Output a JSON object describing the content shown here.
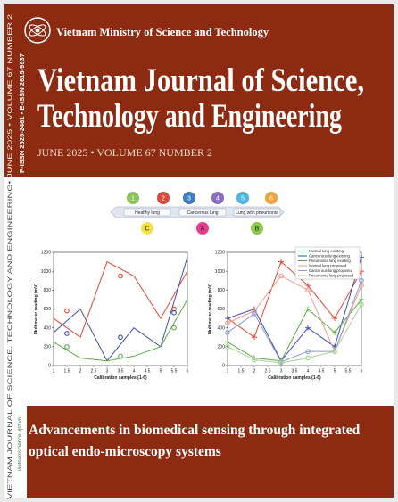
{
  "header": {
    "publisher": "Vietnam Ministry of Science and Technology",
    "title_lines": [
      "Vietnam Journal of Science,",
      "Technology and Engineering"
    ],
    "issue": "JUNE 2025 • VOLUME 67 NUMBER 2",
    "issn": "P-ISSN 2525-2461 • E-ISSN 2615-9937"
  },
  "spine": "VIETNAM JOURNAL OF SCIENCE, TECHNOLOGY AND ENGINEERING• JUNE 2025 • VOLUME 67 NUMBER 2",
  "website": "vietnamscience.vjst.vn",
  "figure": {
    "diagram": {
      "steps": [
        {
          "label": "1",
          "color": "#8dc35a"
        },
        {
          "label": "2",
          "color": "#d9493f"
        },
        {
          "label": "3",
          "color": "#3f7cc4"
        },
        {
          "label": "4",
          "color": "#8b6ec2"
        },
        {
          "label": "5",
          "color": "#4db5e3"
        },
        {
          "label": "6",
          "color": "#f0a23c"
        }
      ],
      "stages": [
        "Healthy lung",
        "Cancerous lung",
        "Lung with pneumonia"
      ],
      "classes": [
        {
          "label": "C",
          "color": "#f4e04a"
        },
        {
          "label": "A",
          "color": "#e0418f"
        },
        {
          "label": "B",
          "color": "#8cc84b"
        }
      ]
    },
    "charts": [
      {
        "type": "line",
        "xlabel": "Calibration samples (1-6)",
        "ylabel": "Multimeter reading (mV)",
        "xlim": [
          1,
          6
        ],
        "ylim": [
          0,
          1200
        ],
        "xticks": [
          1,
          1.5,
          2,
          2.5,
          3,
          3.5,
          4,
          4.5,
          5,
          5.5,
          6
        ],
        "yticks": [
          0,
          200,
          400,
          600,
          800,
          1000,
          1200
        ],
        "series": [
          {
            "color": "#e8402f",
            "line": true,
            "marker": "none",
            "x": [
              1,
              2,
              3,
              4,
              5,
              6
            ],
            "values": [
              500,
              300,
              1100,
              950,
              500,
              1000
            ]
          },
          {
            "color": "#3c4fa8",
            "line": true,
            "marker": "none",
            "x": [
              1,
              2,
              3,
              4,
              5,
              6
            ],
            "values": [
              350,
              600,
              50,
              400,
              200,
              1150
            ]
          },
          {
            "color": "#5aaa46",
            "line": true,
            "marker": "none",
            "x": [
              1,
              2,
              3,
              4,
              5,
              6
            ],
            "values": [
              250,
              80,
              50,
              100,
              200,
              700
            ]
          },
          {
            "color": "#e8402f",
            "line": false,
            "marker": "o",
            "x": [
              1.5,
              3.5,
              5.5
            ],
            "values": [
              580,
              950,
              600
            ]
          },
          {
            "color": "#3c4fa8",
            "line": false,
            "marker": "o",
            "x": [
              1.5,
              3.5,
              5.5
            ],
            "values": [
              340,
              300,
              560
            ]
          },
          {
            "color": "#5aaa46",
            "line": false,
            "marker": "o",
            "x": [
              1.5,
              3.5,
              5.5
            ],
            "values": [
              200,
              100,
              400
            ]
          }
        ]
      },
      {
        "type": "line",
        "xlabel": "Calibration samples (1-6)",
        "ylabel": "Multimeter reading (mV)",
        "xlim": [
          1,
          6
        ],
        "ylim": [
          0,
          1200
        ],
        "xticks": [
          1,
          1.5,
          2,
          2.5,
          3,
          3.5,
          4,
          4.5,
          5,
          5.5,
          6
        ],
        "yticks": [
          0,
          200,
          400,
          600,
          800,
          1000,
          1200
        ],
        "legend": "upper right",
        "series": [
          {
            "name": "Normal lung existing",
            "color": "#e8402f",
            "line": true,
            "marker": "+",
            "x": [
              1,
              2,
              3,
              4,
              5,
              6
            ],
            "values": [
              500,
              300,
              1100,
              850,
              500,
              1000
            ]
          },
          {
            "name": "Cancerous lung existing",
            "color": "#3c4fa8",
            "line": true,
            "marker": "+",
            "x": [
              1,
              2,
              3,
              4,
              5,
              6
            ],
            "values": [
              500,
              600,
              50,
              400,
              200,
              1150
            ]
          },
          {
            "name": "Pneumonia lung existing",
            "color": "#5aaa46",
            "line": true,
            "marker": "+",
            "x": [
              1,
              2,
              3,
              4,
              5,
              6
            ],
            "values": [
              250,
              80,
              50,
              600,
              350,
              700
            ]
          },
          {
            "name": "Normal lung proposed",
            "color": "#f29a8c",
            "line": true,
            "marker": "o",
            "x": [
              1,
              2,
              3,
              4,
              5,
              6
            ],
            "values": [
              450,
              580,
              950,
              800,
              150,
              850
            ]
          },
          {
            "name": "Cancerous lung proposed",
            "color": "#8f9bd1",
            "line": true,
            "marker": "o",
            "x": [
              1,
              2,
              3,
              4,
              5,
              6
            ],
            "values": [
              350,
              550,
              40,
              150,
              150,
              900
            ]
          },
          {
            "name": "Pneumonia lung proposed",
            "color": "#a5d394",
            "line": true,
            "marker": "o",
            "x": [
              1,
              2,
              3,
              4,
              5,
              6
            ],
            "values": [
              200,
              60,
              30,
              80,
              150,
              650
            ]
          }
        ]
      }
    ]
  },
  "article": {
    "title_lines": [
      "Advancements in biomedical sensing through integrated",
      "optical endo-microscopy systems"
    ]
  }
}
